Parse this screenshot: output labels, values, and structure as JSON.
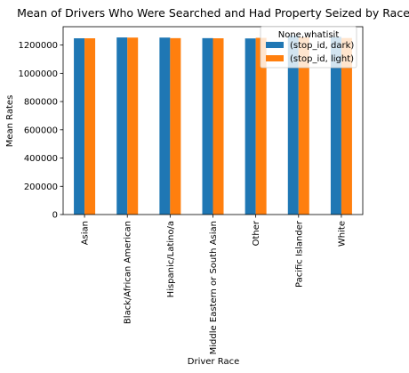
{
  "chart_data": {
    "type": "bar",
    "title": "Mean of Drivers Who Were Searched and Had Property Seized by Race",
    "xlabel": "Driver Race",
    "ylabel": "Mean Rates",
    "categories": [
      "Asian",
      "Black/African American",
      "Hispanic/Latino/a",
      "Middle Eastern or South Asian",
      "Other",
      "Pacific Islander",
      "White"
    ],
    "series": [
      {
        "name": "(stop_id, dark)",
        "color": "#1f77b4",
        "values": [
          1248000,
          1254000,
          1253000,
          1249000,
          1247000,
          1268000,
          1258000
        ]
      },
      {
        "name": "(stop_id, light)",
        "color": "#ff7f0e",
        "values": [
          1248000,
          1253000,
          1249000,
          1248000,
          1251000,
          1255000,
          1250000
        ]
      }
    ],
    "ylim": [
      0,
      1330000
    ],
    "yticks": [
      0,
      200000,
      400000,
      600000,
      800000,
      1000000,
      1200000
    ],
    "ytick_labels": [
      "0",
      "200000",
      "400000",
      "600000",
      "800000",
      "1000000",
      "1200000"
    ],
    "grid": false,
    "legend": {
      "title": "None,whatisit",
      "placement": "top-right"
    }
  }
}
